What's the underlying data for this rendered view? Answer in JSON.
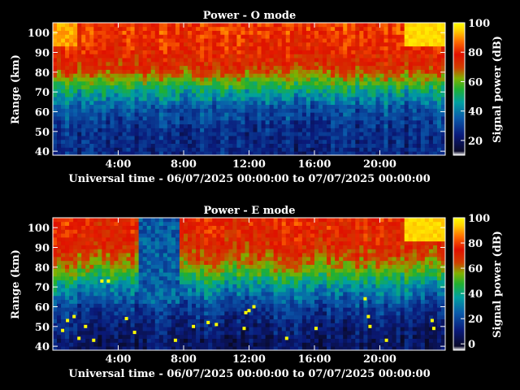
{
  "chart_data": [
    {
      "type": "heatmap",
      "title": "Power - O mode",
      "xlabel": "Universal time - 06/07/2025 00:00:00 to 07/07/2025 00:00:00",
      "ylabel": "Range (km)",
      "xlim": [
        0,
        24
      ],
      "ylim": [
        38,
        105
      ],
      "x_ticks": [
        4,
        8,
        12,
        16,
        20
      ],
      "x_tick_labels": [
        "4:00",
        "8:00",
        "12:00",
        "16:00",
        "20:00"
      ],
      "y_ticks": [
        40,
        50,
        60,
        70,
        80,
        90,
        100
      ],
      "y_tick_labels": [
        "40",
        "50",
        "60",
        "70",
        "80",
        "90",
        "100"
      ],
      "colorbar": {
        "label": "Signal power (dB)",
        "range": [
          10,
          100
        ],
        "ticks": [
          20,
          40,
          60,
          80,
          100
        ],
        "tick_labels": [
          "20",
          "40",
          "60",
          "80",
          "100"
        ]
      },
      "approx_profile": {
        "range_km": [
          40,
          50,
          60,
          70,
          80,
          90,
          100
        ],
        "power_db": [
          14,
          16,
          22,
          38,
          62,
          70,
          74
        ]
      },
      "features": {
        "hotspot": {
          "time_h": [
            21.5,
            24
          ],
          "range_km": [
            92,
            105
          ],
          "power_db": 92
        },
        "hotspot_early": {
          "time_h": [
            0,
            1.3
          ],
          "range_km": [
            92,
            105
          ],
          "power_db": 90
        }
      }
    },
    {
      "type": "heatmap",
      "title": "Power - E mode",
      "xlabel": "Universal time - 06/07/2025 00:00:00 to 07/07/2025 00:00:00",
      "ylabel": "Range (km)",
      "xlim": [
        0,
        24
      ],
      "ylim": [
        38,
        105
      ],
      "x_ticks": [
        4,
        8,
        12,
        16,
        20
      ],
      "x_tick_labels": [
        "4:00",
        "8:00",
        "12:00",
        "16:00",
        "20:00"
      ],
      "y_ticks": [
        40,
        50,
        60,
        70,
        80,
        90,
        100
      ],
      "y_tick_labels": [
        "40",
        "50",
        "60",
        "70",
        "80",
        "90",
        "100"
      ],
      "colorbar": {
        "label": "Signal power (dB)",
        "range": [
          -5,
          100
        ],
        "ticks": [
          0,
          20,
          40,
          60,
          80,
          100
        ],
        "tick_labels": [
          "0",
          "20",
          "40",
          "60",
          "80",
          "100"
        ]
      },
      "approx_profile": {
        "range_km": [
          40,
          50,
          60,
          70,
          80,
          90,
          100
        ],
        "power_db": [
          8,
          12,
          20,
          34,
          55,
          66,
          70
        ]
      },
      "features": {
        "hotspot": {
          "time_h": [
            21.5,
            24
          ],
          "range_km": [
            92,
            105
          ],
          "power_db": 92
        },
        "low_power_gap": {
          "time_h": [
            5.2,
            7.5
          ],
          "range_km": [
            60,
            105
          ],
          "power_db": 25
        },
        "speckles_yellow": [
          [
            0.6,
            48
          ],
          [
            0.9,
            53
          ],
          [
            1.3,
            55
          ],
          [
            1.6,
            44
          ],
          [
            2.0,
            50
          ],
          [
            2.5,
            43
          ],
          [
            3.0,
            73
          ],
          [
            3.4,
            73
          ],
          [
            4.5,
            54
          ],
          [
            5.0,
            47
          ],
          [
            7.5,
            43
          ],
          [
            8.6,
            50
          ],
          [
            9.5,
            52
          ],
          [
            10.0,
            51
          ],
          [
            11.8,
            57
          ],
          [
            12.0,
            58
          ],
          [
            11.7,
            49
          ],
          [
            12.3,
            60
          ],
          [
            14.3,
            44
          ],
          [
            16.1,
            49
          ],
          [
            19.1,
            64
          ],
          [
            19.3,
            55
          ],
          [
            19.4,
            50
          ],
          [
            20.4,
            43
          ],
          [
            23.2,
            53
          ],
          [
            23.3,
            49
          ]
        ]
      }
    }
  ]
}
